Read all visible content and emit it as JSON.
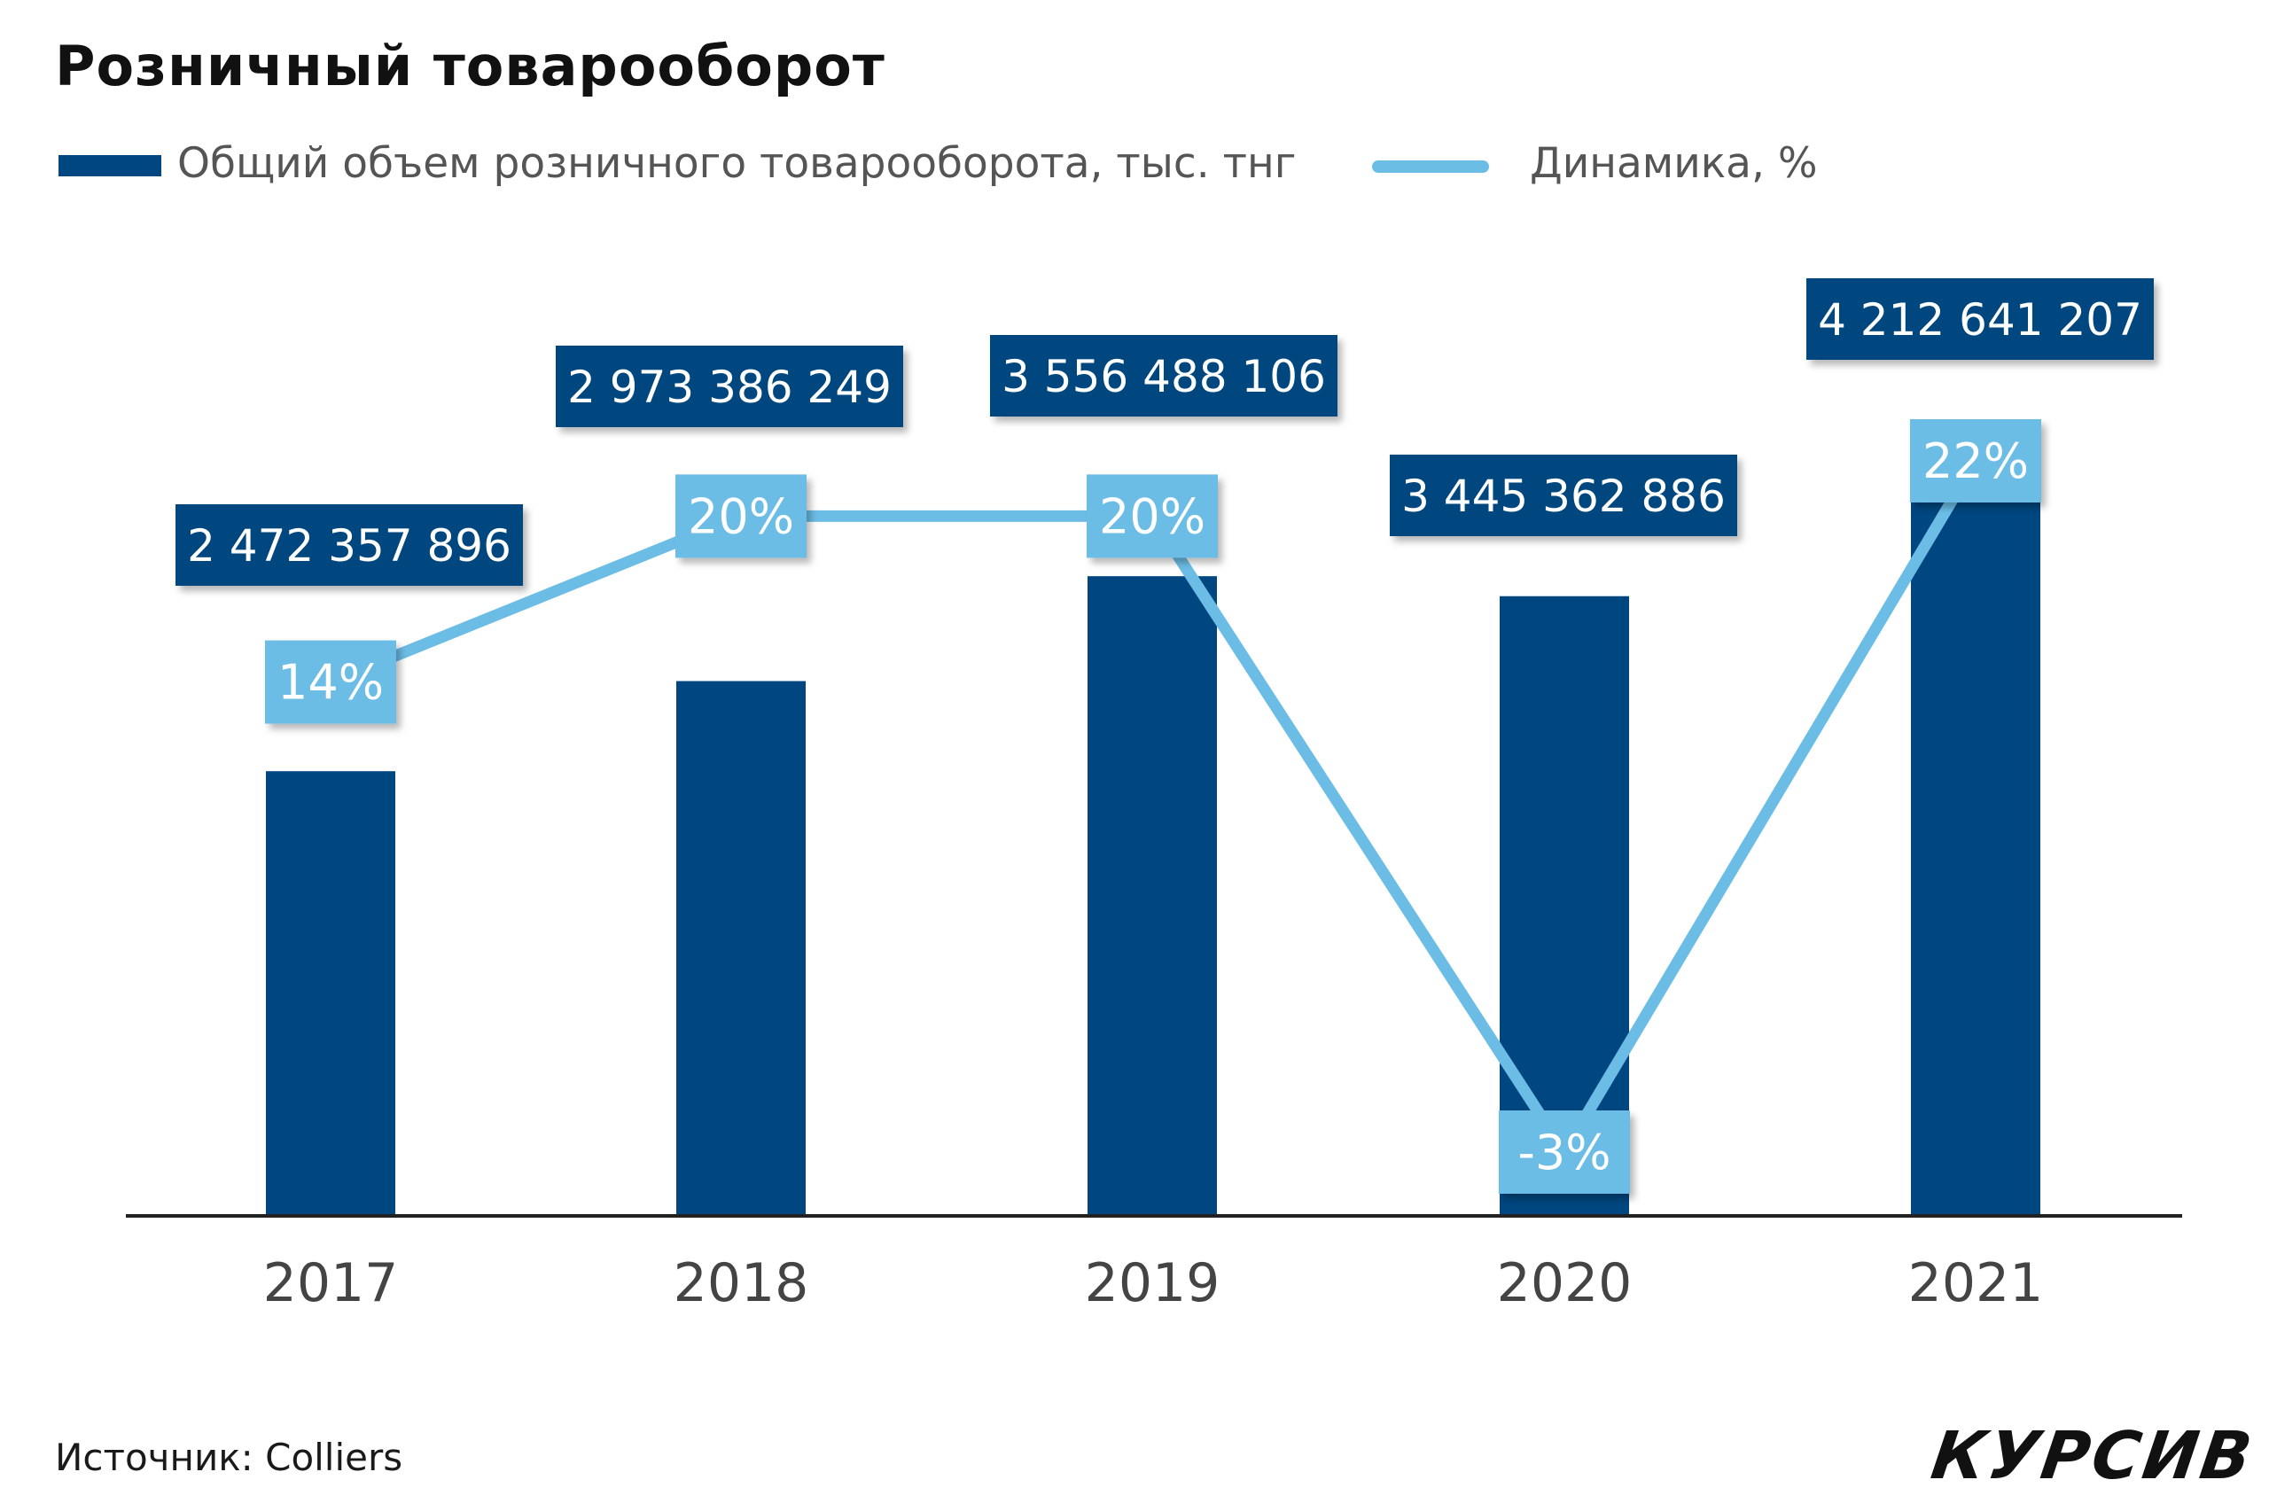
{
  "title": "Розничный товарооборот",
  "source": "Источник: Colliers",
  "logo_text": "КУРСИВ",
  "colors": {
    "bar": "#004680",
    "line": "#6cbde6",
    "label_bg_bar": "#004680",
    "label_bg_line": "#6cbde6",
    "axis": "#222222"
  },
  "chart_data": {
    "type": "bar",
    "title": "Розничный товарооборот",
    "categories": [
      "2017",
      "2018",
      "2019",
      "2020",
      "2021"
    ],
    "series": [
      {
        "name": "Общий объем розничного товарооборота, тыс. тнг",
        "type": "bar",
        "values": [
          2472357896,
          2973386249,
          3556488106,
          3445362886,
          4212641207
        ],
        "labels": [
          "2 472 357 896",
          "2 973 386 249",
          "3 556 488 106",
          "3 445 362 886",
          "4 212 641 207"
        ]
      },
      {
        "name": "Динамика, %",
        "type": "line",
        "values": [
          14,
          20,
          20,
          -3,
          22
        ],
        "labels": [
          "14%",
          "20%",
          "20%",
          "-3%",
          "22%"
        ]
      }
    ],
    "legend": "top-left",
    "grid": false
  }
}
